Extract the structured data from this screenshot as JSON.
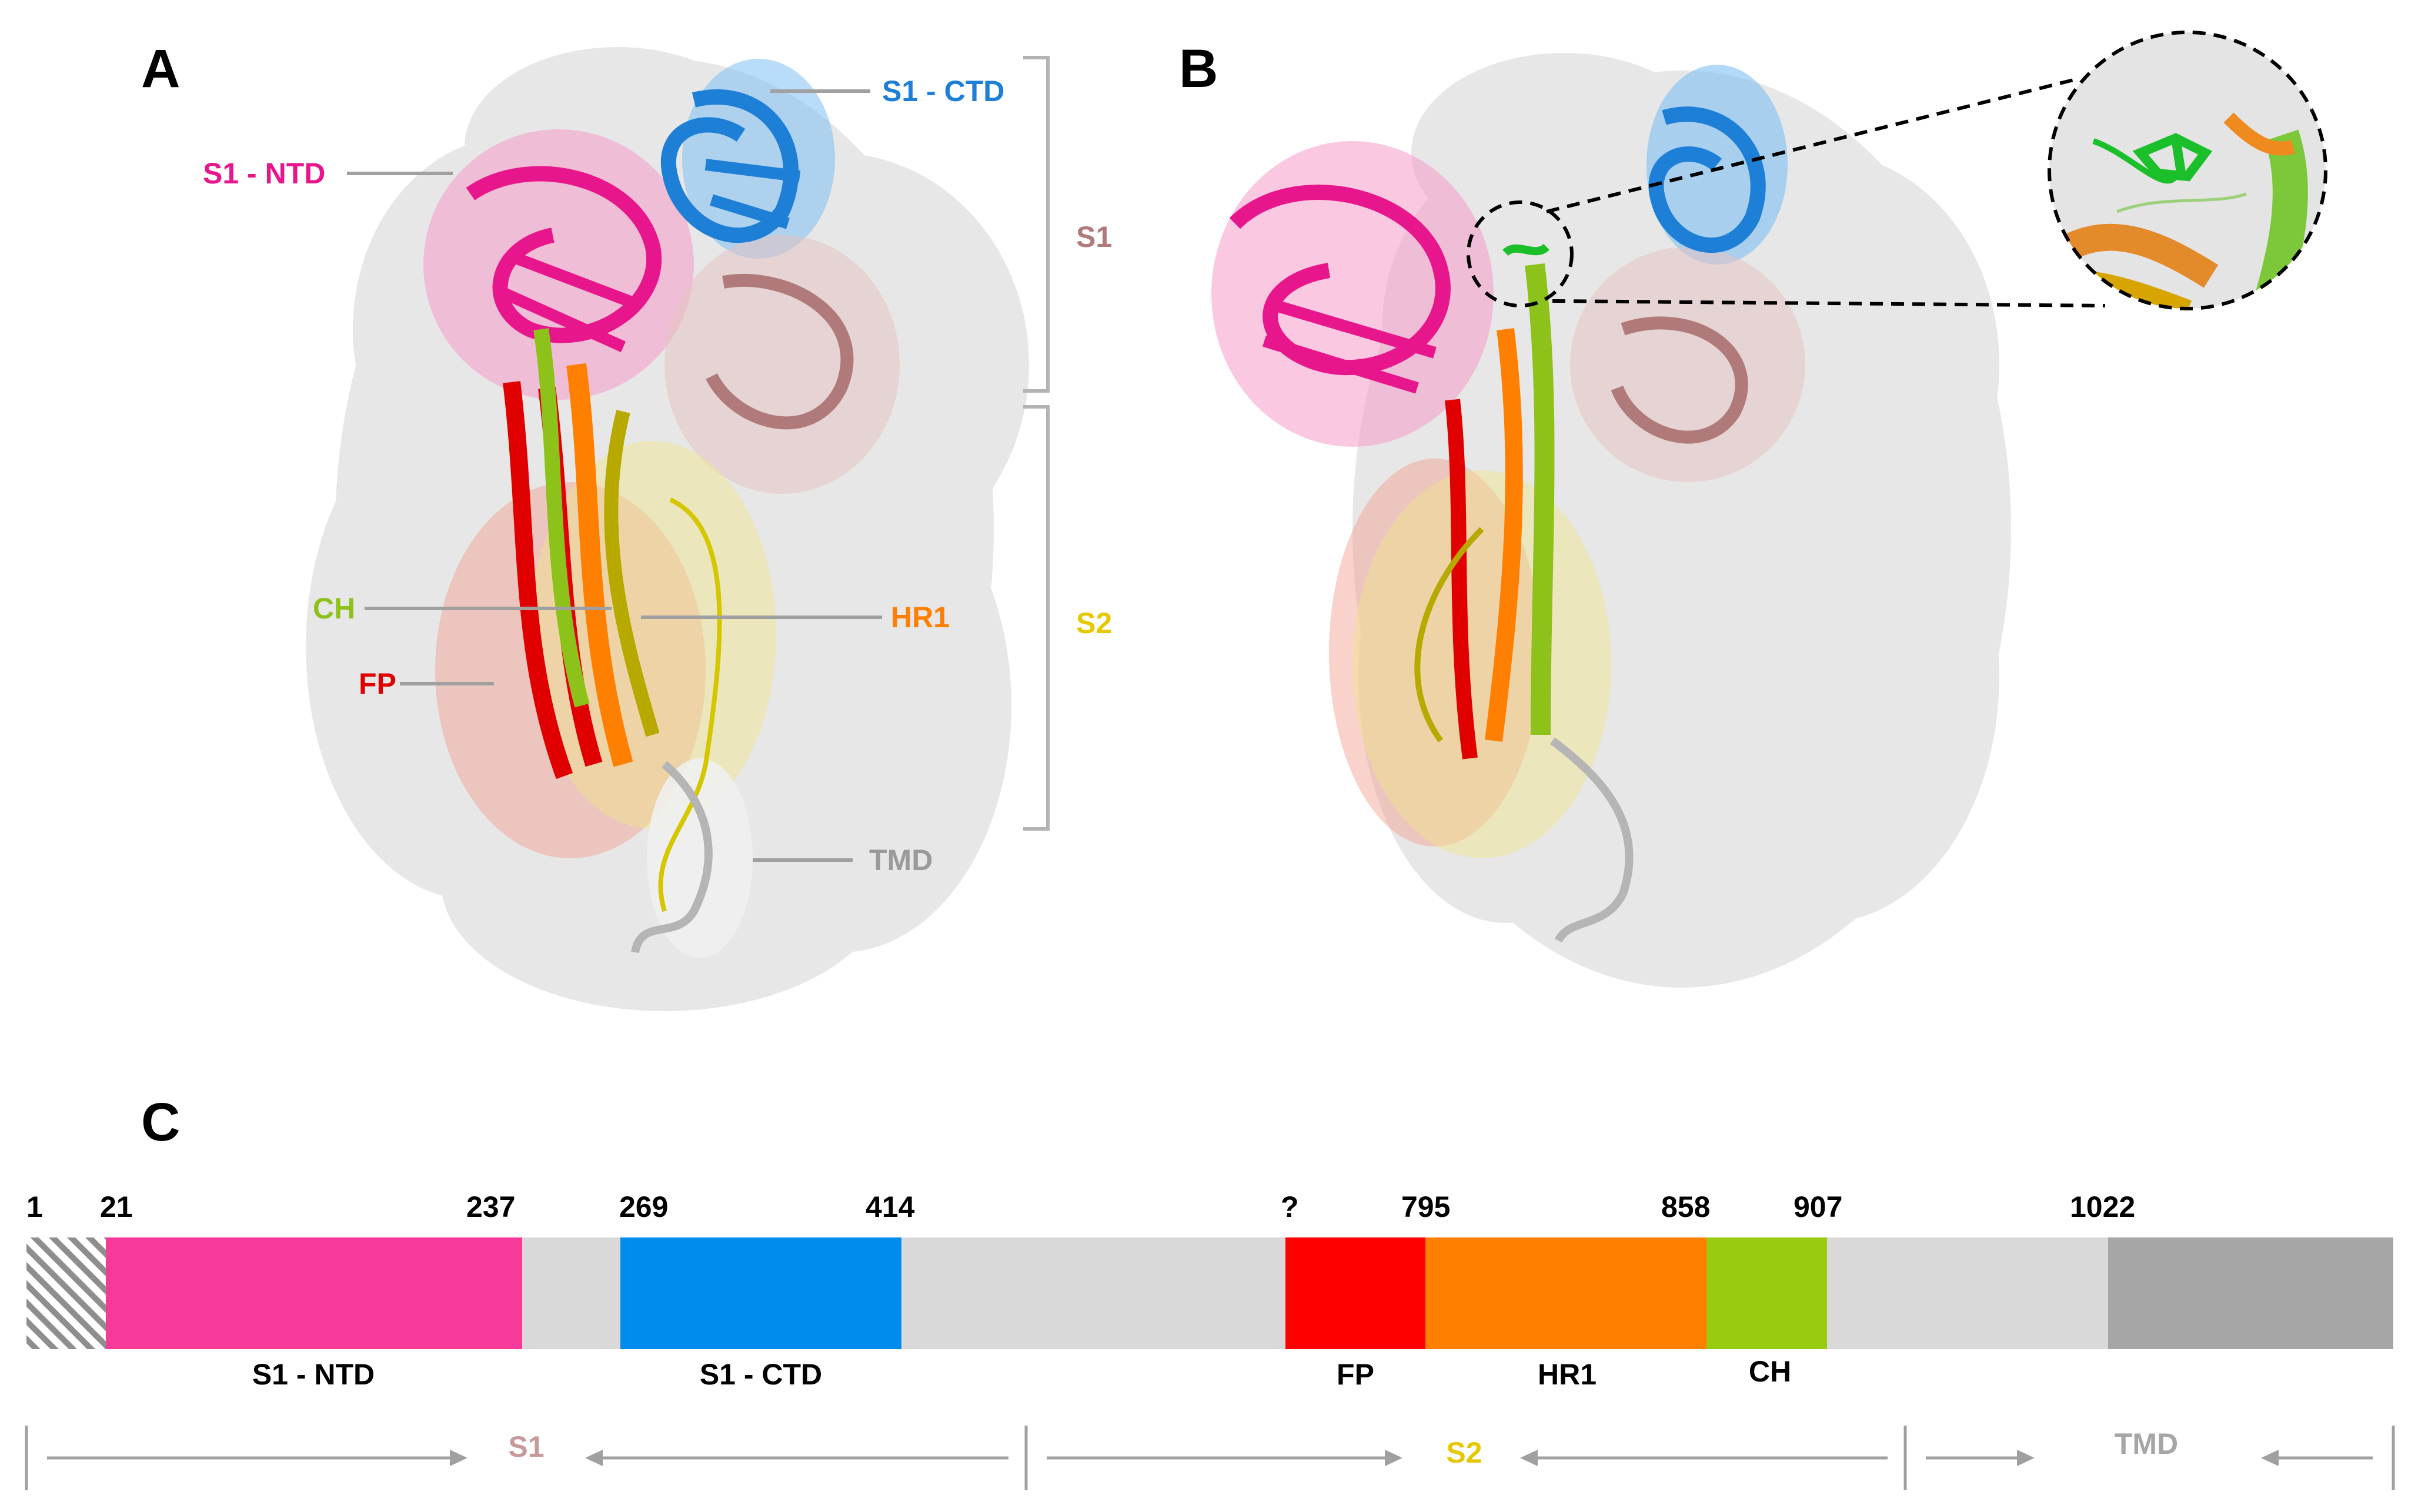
{
  "panels": {
    "a": "A",
    "b": "B",
    "c": "C"
  },
  "panel_a_labels": {
    "s1_ctd": "S1 - CTD",
    "s1_ntd": "S1 - NTD",
    "s1": "S1",
    "s2": "S2",
    "ch": "CH",
    "hr1": "HR1",
    "fp": "FP",
    "tmd": "TMD"
  },
  "domain_bar": {
    "positions": [
      "1",
      "21",
      "237",
      "269",
      "414",
      "?",
      "795",
      "858",
      "907",
      "1022"
    ],
    "segments": [
      {
        "name": "signal",
        "label": "",
        "color": "#ffffff"
      },
      {
        "name": "s1-ntd",
        "label": "S1 - NTD",
        "color": "#f7399a"
      },
      {
        "name": "linker-1",
        "label": "",
        "color": "#d9d9d9"
      },
      {
        "name": "s1-ctd",
        "label": "S1 - CTD",
        "color": "#008cec"
      },
      {
        "name": "linker-2",
        "label": "",
        "color": "#d9d9d9"
      },
      {
        "name": "fp",
        "label": "FP",
        "color": "#ff0000"
      },
      {
        "name": "hr1",
        "label": "HR1",
        "color": "#ff7f00"
      },
      {
        "name": "ch",
        "label": "CH",
        "color": "#99cc11"
      },
      {
        "name": "linker-3",
        "label": "",
        "color": "#d9d9d9"
      },
      {
        "name": "tmd",
        "label": "",
        "color": "#a6a6a6"
      }
    ],
    "regions": {
      "s1": "S1",
      "s2": "S2",
      "tmd": "TMD"
    }
  },
  "colors": {
    "s1_ntd": "#e8168c",
    "s1_ctd": "#1e7fd6",
    "s1_bracket": "#b07a7a",
    "s2_bracket": "#e6c800",
    "ch": "#8cc21a",
    "hr1": "#ff7f00",
    "fp": "#e00000",
    "tmd": "#9a9a9a"
  }
}
